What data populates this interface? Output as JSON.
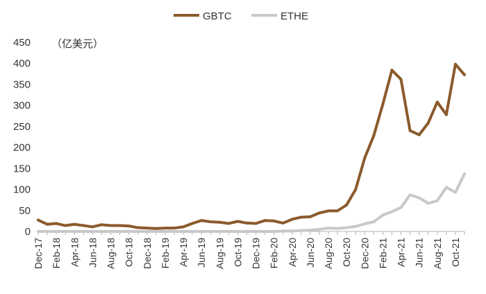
{
  "chart_data": {
    "type": "line",
    "title": "",
    "ylabel": "（亿美元）",
    "xlabel": "",
    "ylim": [
      0,
      450
    ],
    "yticks": [
      0,
      50,
      100,
      150,
      200,
      250,
      300,
      350,
      400,
      450
    ],
    "x_tick_labels": [
      "Dec-17",
      "Feb-18",
      "Apr-18",
      "Jun-18",
      "Aug-18",
      "Oct-18",
      "Dec-18",
      "Feb-19",
      "Apr-19",
      "Jun-19",
      "Aug-19",
      "Oct-19",
      "Dec-19",
      "Feb-20",
      "Apr-20",
      "Jun-20",
      "Aug-20",
      "Oct-20",
      "Dec-20",
      "Feb-21",
      "Apr-21",
      "Jun-21",
      "Aug-21",
      "Oct-21"
    ],
    "x": [
      "Dec-17",
      "Jan-18",
      "Feb-18",
      "Mar-18",
      "Apr-18",
      "May-18",
      "Jun-18",
      "Jul-18",
      "Aug-18",
      "Sep-18",
      "Oct-18",
      "Nov-18",
      "Dec-18",
      "Jan-19",
      "Feb-19",
      "Mar-19",
      "Apr-19",
      "May-19",
      "Jun-19",
      "Jul-19",
      "Aug-19",
      "Sep-19",
      "Oct-19",
      "Nov-19",
      "Dec-19",
      "Jan-20",
      "Feb-20",
      "Mar-20",
      "Apr-20",
      "May-20",
      "Jun-20",
      "Jul-20",
      "Aug-20",
      "Sep-20",
      "Oct-20",
      "Nov-20",
      "Dec-20",
      "Jan-21",
      "Feb-21",
      "Mar-21",
      "Apr-21",
      "May-21",
      "Jun-21",
      "Jul-21",
      "Aug-21",
      "Sep-21",
      "Oct-21",
      "Nov-21"
    ],
    "legend_position": "top-center",
    "grid": false,
    "series": [
      {
        "name": "GBTC",
        "color": "#8B5A2B",
        "values": [
          27,
          17,
          19,
          14,
          17,
          14,
          11,
          16,
          14,
          14,
          13,
          9,
          8,
          7,
          8,
          8,
          11,
          19,
          26,
          23,
          22,
          19,
          24,
          20,
          19,
          26,
          25,
          20,
          29,
          34,
          35,
          44,
          49,
          49,
          63,
          100,
          175,
          228,
          303,
          384,
          362,
          240,
          230,
          258,
          308,
          278,
          398,
          373
        ]
      },
      {
        "name": "ETHE",
        "color": "#C8C8C8",
        "values": [
          0,
          0,
          0,
          0,
          0,
          0,
          0,
          0,
          0,
          0,
          0,
          0,
          0,
          0,
          0,
          0,
          0,
          0,
          0,
          0,
          0,
          0,
          0,
          0,
          0,
          0,
          0,
          1,
          1,
          2,
          3,
          5,
          8,
          7,
          9,
          12,
          18,
          23,
          39,
          47,
          57,
          87,
          80,
          67,
          73,
          105,
          93,
          137
        ]
      }
    ]
  }
}
